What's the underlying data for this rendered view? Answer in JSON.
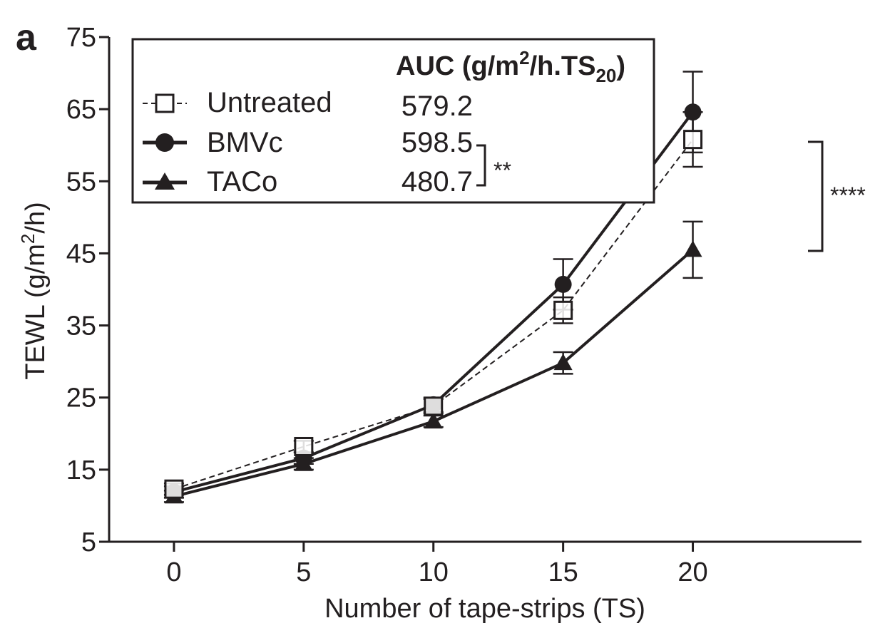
{
  "panel_label": "a",
  "legend": {
    "header": {
      "main": "AUC (g/m",
      "sup": "2",
      "mid": "/h.TS",
      "sub": "20",
      "end": ")"
    },
    "entries": [
      {
        "series": "Untreated",
        "value": "579.2"
      },
      {
        "series": "BMVc",
        "value": "598.5"
      },
      {
        "series": "TACo",
        "value": "480.7"
      }
    ],
    "bracket_label": "**"
  },
  "chart_data": {
    "type": "line",
    "xlabel": "Number of tape-strips (TS)",
    "ylabel": {
      "main": "TEWL (g/m",
      "sup": "2",
      "end": "/h)"
    },
    "x": [
      0,
      5,
      10,
      15,
      20
    ],
    "xlim": [
      -2.5,
      26.5
    ],
    "ylim": [
      5,
      75
    ],
    "xticks": [
      0,
      5,
      10,
      15,
      20
    ],
    "yticks": [
      5,
      15,
      25,
      35,
      45,
      55,
      65,
      75
    ],
    "grid": false,
    "legend_position": "top-left",
    "series": [
      {
        "name": "Untreated",
        "marker": "open-square",
        "line": "dashed",
        "values": [
          12.3,
          18.2,
          23.8,
          37.1,
          60.8
        ],
        "error": [
          0.8,
          0.8,
          1.0,
          1.8,
          3.8
        ]
      },
      {
        "name": "BMVc",
        "marker": "filled-circle",
        "line": "solid",
        "values": [
          11.9,
          16.6,
          24.0,
          40.7,
          64.6
        ],
        "error": [
          0.8,
          0.8,
          1.0,
          3.5,
          5.6
        ]
      },
      {
        "name": "TACo",
        "marker": "filled-triangle",
        "line": "solid",
        "values": [
          11.3,
          15.8,
          21.7,
          29.8,
          45.5
        ],
        "error": [
          0.8,
          0.8,
          0.8,
          1.5,
          3.9
        ]
      }
    ],
    "annotations": [
      {
        "text": "****",
        "between": [
          "BMVc",
          "TACo"
        ],
        "at_x": 20
      }
    ]
  }
}
